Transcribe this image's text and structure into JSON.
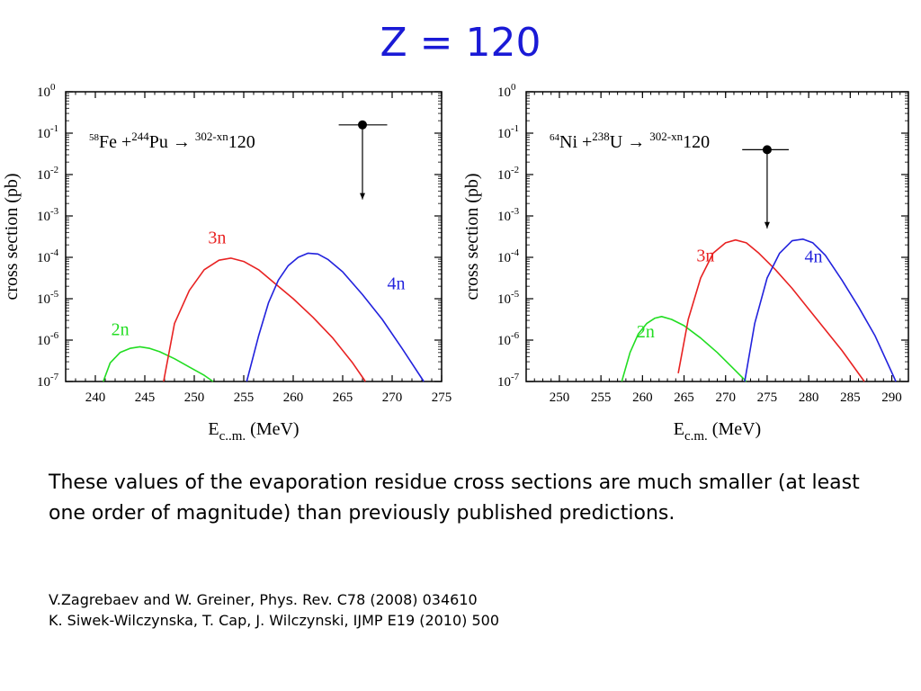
{
  "title": "Z = 120",
  "summary": "These values of the evaporation residue cross sections are much smaller (at least one order of magnitude) than previously published predictions.",
  "references": [
    "V.Zagrebaev and W. Greiner, Phys. Rev. C78 (2008) 034610",
    "K. Siwek-Wilczynska, T. Cap, J. Wilczynski, IJMP E19 (2010) 500"
  ],
  "chart_data": [
    {
      "type": "line",
      "reaction": {
        "proj_mass": "58",
        "proj": "Fe",
        "target_mass": "244",
        "target": "Pu",
        "arrow": "→",
        "product_mass": "302-xn",
        "product": "120"
      },
      "xlabel_main": "E",
      "xlabel_sub": "c..m.",
      "xlabel_unit": "(MeV)",
      "ylabel": "cross section (pb)",
      "xlim": [
        237,
        275
      ],
      "xticks": [
        240,
        245,
        250,
        255,
        260,
        265,
        270,
        275
      ],
      "ylim_exp": [
        -7,
        0
      ],
      "yscale": "log",
      "yticks_exp": [
        "0",
        "-1",
        "-2",
        "-3",
        "-4",
        "-5",
        "-6",
        "-7"
      ],
      "ytick_base": "10",
      "series": [
        {
          "name": "2n",
          "color": "#22dd22",
          "label_x": 241.6,
          "label_y": -5.88,
          "x": [
            240.8,
            241.5,
            242.5,
            243.5,
            244.5,
            245.5,
            246.5,
            248,
            249.5,
            251,
            251.9
          ],
          "y": [
            -7.0,
            -6.55,
            -6.3,
            -6.2,
            -6.16,
            -6.2,
            -6.28,
            -6.45,
            -6.65,
            -6.85,
            -7.0
          ]
        },
        {
          "name": "3n",
          "color": "#e82222",
          "label_x": 251.4,
          "label_y": -3.66,
          "x": [
            246.9,
            248,
            249.5,
            251,
            252.5,
            253.7,
            255,
            256.5,
            258,
            260,
            262,
            264,
            266,
            267.3
          ],
          "y": [
            -7.0,
            -5.6,
            -4.8,
            -4.3,
            -4.07,
            -4.02,
            -4.1,
            -4.3,
            -4.6,
            -5.0,
            -5.45,
            -5.95,
            -6.55,
            -7.0
          ]
        },
        {
          "name": "4n",
          "color": "#2222dd",
          "label_x": 269.5,
          "label_y": -4.77,
          "x": [
            255.3,
            256.5,
            257.5,
            258.5,
            259.5,
            260.5,
            261.5,
            262.5,
            263.5,
            265,
            267,
            269,
            271,
            273.2
          ],
          "y": [
            -7.0,
            -5.9,
            -5.1,
            -4.55,
            -4.2,
            -4.0,
            -3.9,
            -3.92,
            -4.05,
            -4.35,
            -4.9,
            -5.5,
            -6.2,
            -7.0
          ]
        }
      ],
      "marker": {
        "x": 267,
        "y": -0.8,
        "xerr": [
          264.6,
          269.5
        ],
        "arrow_to": -2.6
      }
    },
    {
      "type": "line",
      "reaction": {
        "proj_mass": "64",
        "proj": "Ni",
        "target_mass": "238",
        "target": "U",
        "arrow": "→",
        "product_mass": "302-xn",
        "product": "120"
      },
      "xlabel_main": "E",
      "xlabel_sub": "c.m.",
      "xlabel_unit": "(MeV)",
      "ylabel": "cross section (pb)",
      "xlim": [
        246,
        292
      ],
      "xticks": [
        250,
        255,
        260,
        265,
        270,
        275,
        280,
        285,
        290
      ],
      "ylim_exp": [
        -7,
        0
      ],
      "yscale": "log",
      "yticks_exp": [
        "0",
        "-1",
        "-2",
        "-3",
        "-4",
        "-5",
        "-6",
        "-7"
      ],
      "ytick_base": "10",
      "series": [
        {
          "name": "2n",
          "color": "#22dd22",
          "label_x": 259.3,
          "label_y": -5.93,
          "x": [
            257.5,
            258.5,
            259.5,
            260.5,
            261.5,
            262.3,
            263.5,
            265,
            267,
            269,
            271,
            272.5
          ],
          "y": [
            -7.0,
            -6.3,
            -5.85,
            -5.6,
            -5.47,
            -5.43,
            -5.5,
            -5.65,
            -5.95,
            -6.3,
            -6.7,
            -7.0
          ]
        },
        {
          "name": "3n",
          "color": "#e82222",
          "label_x": 266.5,
          "label_y": -4.1,
          "x": [
            264.3,
            265.5,
            267,
            268.5,
            270,
            271.2,
            272.5,
            274,
            276,
            278,
            280,
            282,
            284,
            286.7
          ],
          "y": [
            -6.8,
            -5.5,
            -4.5,
            -3.9,
            -3.65,
            -3.58,
            -3.65,
            -3.9,
            -4.3,
            -4.75,
            -5.25,
            -5.75,
            -6.25,
            -7.0
          ]
        },
        {
          "name": "4n",
          "color": "#2222dd",
          "label_x": 279.5,
          "label_y": -4.12,
          "x": [
            272.3,
            273.5,
            275,
            276.5,
            278,
            279.3,
            280.5,
            282,
            284,
            286,
            288,
            290.5
          ],
          "y": [
            -7.0,
            -5.6,
            -4.5,
            -3.9,
            -3.6,
            -3.56,
            -3.65,
            -3.95,
            -4.55,
            -5.2,
            -5.9,
            -7.0
          ]
        }
      ],
      "marker": {
        "x": 275,
        "y": -1.4,
        "xerr": [
          272,
          277.6
        ],
        "arrow_to": -3.3
      }
    }
  ]
}
